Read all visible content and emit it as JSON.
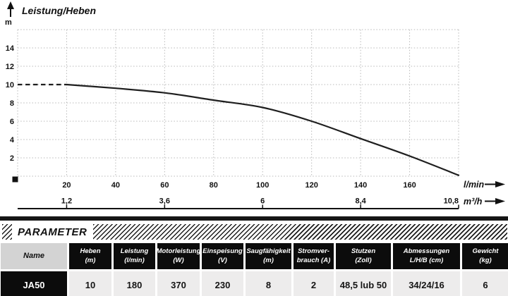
{
  "chart_data": {
    "type": "line",
    "title": "Leistung/Heben",
    "ylabel": "m",
    "xlabel": "l/min",
    "xlabel_secondary": "m³/h",
    "xlim": [
      0,
      180
    ],
    "ylim": [
      0,
      16
    ],
    "grid": true,
    "legend_position": "none",
    "x_ticks": [
      20,
      40,
      60,
      80,
      100,
      120,
      140,
      160
    ],
    "y_ticks": [
      2,
      4,
      6,
      8,
      10,
      12,
      14
    ],
    "y_gridlines": [
      2,
      4,
      6,
      8,
      10,
      12,
      14,
      16
    ],
    "secondary_x_ticks": [
      {
        "label": "1,2",
        "x": 20,
        "anchor": "middle"
      },
      {
        "label": "3,6",
        "x": 60,
        "anchor": "middle"
      },
      {
        "label": "6",
        "x": 100,
        "anchor": "middle"
      },
      {
        "label": "8,4",
        "x": 140,
        "anchor": "middle"
      },
      {
        "label": "10,8",
        "x": 180,
        "anchor": "end"
      }
    ],
    "series": [
      {
        "name": "JA50",
        "dashed_lead_in": {
          "x": [
            0,
            20
          ],
          "y": [
            10,
            10
          ]
        },
        "x": [
          20,
          40,
          60,
          80,
          100,
          120,
          140,
          160,
          180
        ],
        "y": [
          10,
          9.6,
          9.1,
          8.3,
          7.5,
          6.0,
          4.1,
          2.2,
          0.1
        ]
      }
    ]
  },
  "parameter_section": {
    "title": "PARAMETER"
  },
  "table": {
    "columns": [
      {
        "label": "Name",
        "sub": ""
      },
      {
        "label": "Heben",
        "sub": "(m)"
      },
      {
        "label": "Leistung",
        "sub": "(l/min)"
      },
      {
        "label": "Motorleistung",
        "sub": "(W)"
      },
      {
        "label": "Einspeisung",
        "sub": "(V)"
      },
      {
        "label": "Saugfähigkeit",
        "sub": "(m)"
      },
      {
        "label": "Stromver-",
        "sub": "brauch (A)"
      },
      {
        "label": "Stutzen",
        "sub": "(Zoll)"
      },
      {
        "label": "Abmessungen",
        "sub": "L/H/B (cm)"
      },
      {
        "label": "Gewicht",
        "sub": "(kg)"
      }
    ],
    "rows": [
      {
        "name": "JA50",
        "values": [
          "10",
          "180",
          "370",
          "230",
          "8",
          "2",
          "48,5 lub 50",
          "34/24/16",
          "6"
        ]
      }
    ]
  },
  "colors": {
    "ink": "#111111",
    "grid": "#b8b8b8",
    "curve": "#1f1f1f",
    "table_header_bg": "#0c0c0c",
    "name_header_bg": "#d3d3d3",
    "cell_bg": "#edecec"
  }
}
